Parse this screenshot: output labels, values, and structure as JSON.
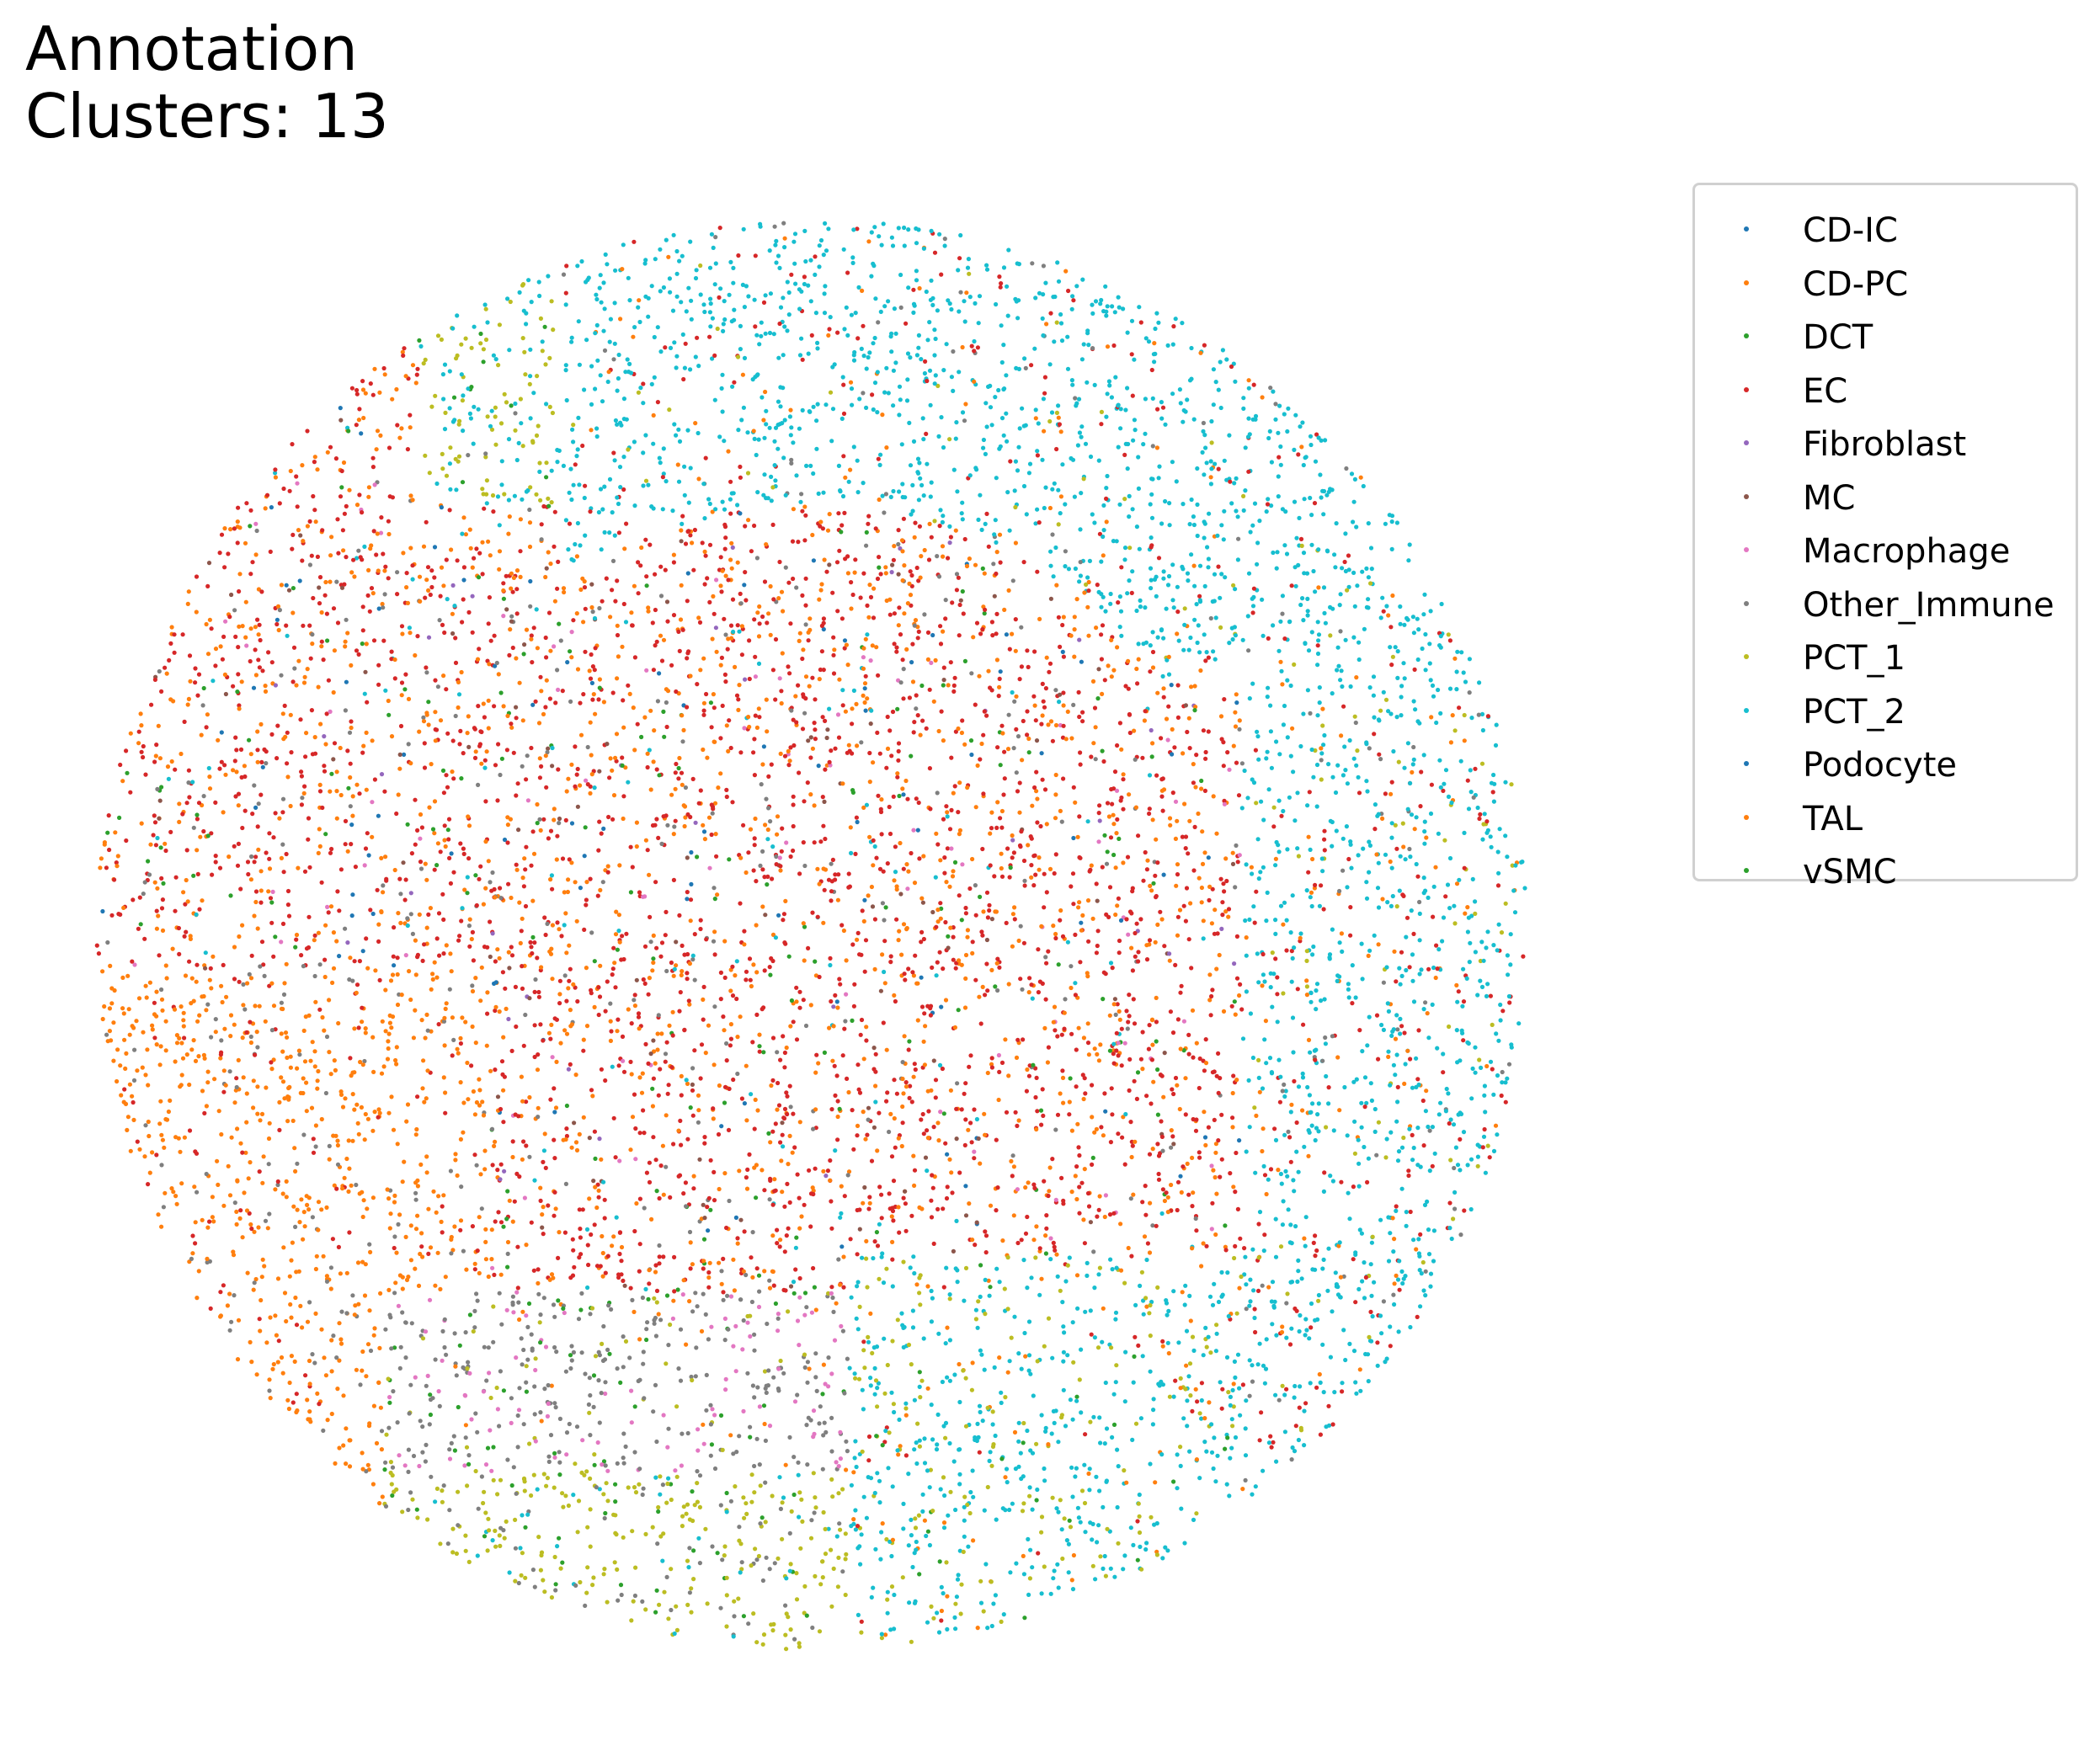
{
  "chart_data": {
    "type": "scatter",
    "title": "Annotation\nClusters: 13",
    "axes_visible": false,
    "legend_placement": "outside-right",
    "series": [
      {
        "name": "CD-IC",
        "color": "#1f77b4"
      },
      {
        "name": "CD-PC",
        "color": "#ff7f0e"
      },
      {
        "name": "DCT",
        "color": "#2ca02c"
      },
      {
        "name": "EC",
        "color": "#d62728"
      },
      {
        "name": "Fibroblast",
        "color": "#9467bd"
      },
      {
        "name": "MC",
        "color": "#8c564b"
      },
      {
        "name": "Macrophage",
        "color": "#e377c2"
      },
      {
        "name": "Other_Immune",
        "color": "#7f7f7f"
      },
      {
        "name": "PCT_1",
        "color": "#bcbd22"
      },
      {
        "name": "PCT_2",
        "color": "#17becf"
      },
      {
        "name": "Podocyte",
        "color": "#1f77b4"
      },
      {
        "name": "TAL",
        "color": "#ff7f0e"
      },
      {
        "name": "vSMC",
        "color": "#2ca02c"
      }
    ]
  }
}
